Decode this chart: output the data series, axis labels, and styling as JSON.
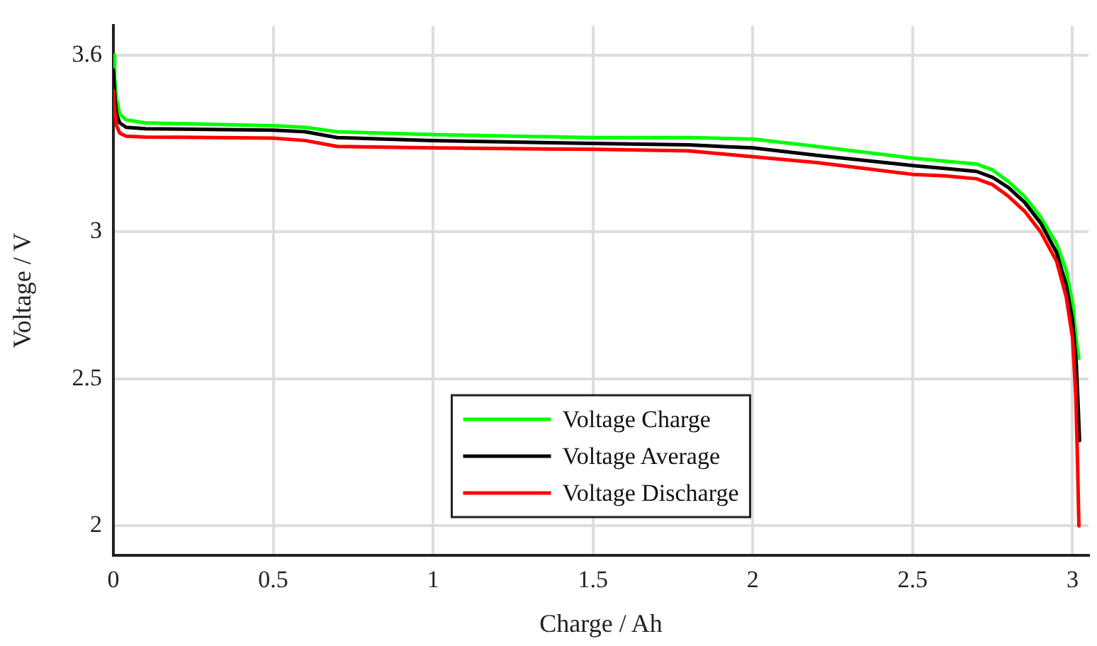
{
  "chart_data": {
    "type": "line",
    "xlabel": "Charge / Ah",
    "ylabel": "Voltage / V",
    "xlim": [
      0,
      3.05
    ],
    "xticks": [
      0,
      0.5,
      1,
      1.5,
      2,
      2.5,
      3
    ],
    "ylim": [
      1.9,
      3.7
    ],
    "yticks": [
      2,
      2.5,
      3,
      3.6
    ],
    "grid": true,
    "legend": "bottom",
    "marker": "none",
    "line_style": "solid",
    "series": [
      {
        "name": "Voltage Charge",
        "color": "#00ff00",
        "x": [
          0,
          0.004,
          0.01,
          0.02,
          0.04,
          0.1,
          0.5,
          0.6,
          0.7,
          1.0,
          1.5,
          1.8,
          2.0,
          2.2,
          2.5,
          2.6,
          2.7,
          2.75,
          2.8,
          2.85,
          2.9,
          2.95,
          2.98,
          3.0,
          3.015,
          3.02
        ],
        "values": [
          3.6,
          3.52,
          3.45,
          3.4,
          3.38,
          3.37,
          3.36,
          3.355,
          3.34,
          3.33,
          3.32,
          3.32,
          3.315,
          3.29,
          3.25,
          3.24,
          3.23,
          3.21,
          3.17,
          3.12,
          3.05,
          2.96,
          2.87,
          2.76,
          2.6,
          2.57
        ]
      },
      {
        "name": "Voltage Average",
        "color": "#000000",
        "x": [
          0,
          0.005,
          0.01,
          0.02,
          0.04,
          0.1,
          0.5,
          0.6,
          0.7,
          1.0,
          1.5,
          1.8,
          2.0,
          2.2,
          2.5,
          2.6,
          2.7,
          2.75,
          2.8,
          2.85,
          2.9,
          2.95,
          2.98,
          3.0,
          3.012,
          3.018,
          3.022
        ],
        "values": [
          3.55,
          3.45,
          3.4,
          3.37,
          3.355,
          3.35,
          3.345,
          3.34,
          3.32,
          3.31,
          3.3,
          3.295,
          3.285,
          3.26,
          3.225,
          3.215,
          3.205,
          3.185,
          3.15,
          3.1,
          3.03,
          2.93,
          2.82,
          2.7,
          2.55,
          2.4,
          2.29
        ]
      },
      {
        "name": "Voltage Discharge",
        "color": "#ff0000",
        "x": [
          0,
          0.005,
          0.01,
          0.02,
          0.04,
          0.1,
          0.5,
          0.6,
          0.7,
          1.0,
          1.5,
          1.8,
          2.0,
          2.2,
          2.5,
          2.6,
          2.7,
          2.75,
          2.8,
          2.85,
          2.9,
          2.95,
          2.98,
          3.0,
          3.01,
          3.015,
          3.02
        ],
        "values": [
          3.48,
          3.4,
          3.36,
          3.335,
          3.325,
          3.322,
          3.318,
          3.31,
          3.29,
          3.285,
          3.28,
          3.275,
          3.255,
          3.235,
          3.195,
          3.19,
          3.18,
          3.16,
          3.12,
          3.07,
          3.0,
          2.9,
          2.78,
          2.64,
          2.45,
          2.25,
          2.0
        ]
      }
    ]
  }
}
